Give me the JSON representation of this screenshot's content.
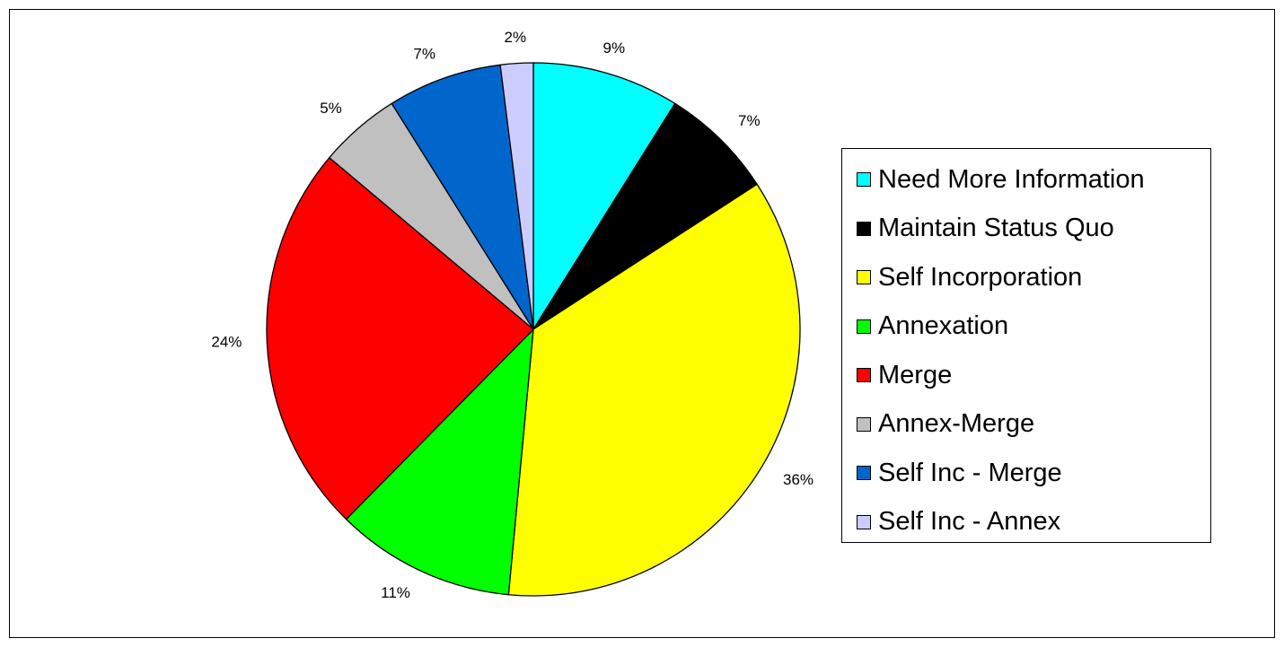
{
  "chart_data": {
    "type": "pie",
    "title": "",
    "series": [
      {
        "values": [
          9,
          7,
          36,
          11,
          24,
          5,
          7,
          2
        ],
        "labels": [
          "9%",
          "7%",
          "36%",
          "11%",
          "24%",
          "5%",
          "7%",
          "2%"
        ]
      }
    ],
    "categories": [
      "Need More Information",
      "Maintain Status Quo",
      "Self Incorporation",
      "Annexation",
      "Merge",
      "Annex-Merge",
      "Self Inc - Merge",
      "Self Inc - Annex"
    ],
    "colors": [
      "#00ffff",
      "#000000",
      "#ffff00",
      "#00ff00",
      "#ff0000",
      "#c0c0c0",
      "#0066cc",
      "#ccccff"
    ],
    "legend_position": "right",
    "start_angle": "12 o'clock",
    "direction": "clockwise"
  }
}
